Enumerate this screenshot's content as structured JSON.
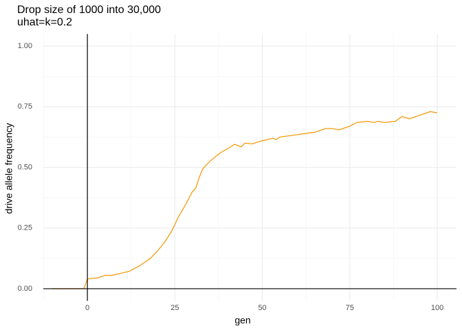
{
  "chart_data": {
    "type": "line",
    "title": "Drop size of 1000 into 30,000",
    "subtitle": "uhat=k=0.2",
    "x_label": "gen",
    "y_label": "drive allele frequency",
    "x": [
      -10,
      -1,
      0,
      3,
      5,
      7,
      10,
      12,
      13,
      15,
      18,
      20,
      22,
      24,
      26,
      28,
      30,
      31,
      32,
      33,
      35,
      38,
      41,
      42,
      44,
      45,
      47,
      50,
      53,
      54,
      55,
      60,
      65,
      68,
      70,
      72,
      75,
      77,
      80,
      82,
      83,
      85,
      88,
      90,
      92,
      95,
      98,
      100
    ],
    "series": [
      {
        "name": "drive",
        "color": "#f39c12",
        "values": [
          0,
          0,
          0.04,
          0.045,
          0.055,
          0.055,
          0.065,
          0.072,
          0.08,
          0.095,
          0.125,
          0.155,
          0.19,
          0.235,
          0.295,
          0.345,
          0.4,
          0.415,
          0.46,
          0.495,
          0.525,
          0.56,
          0.585,
          0.595,
          0.585,
          0.6,
          0.597,
          0.61,
          0.62,
          0.615,
          0.625,
          0.635,
          0.645,
          0.66,
          0.66,
          0.655,
          0.67,
          0.685,
          0.69,
          0.685,
          0.69,
          0.685,
          0.69,
          0.71,
          0.7,
          0.715,
          0.73,
          0.725
        ]
      }
    ],
    "xlim": [
      -12.6,
      105.5
    ],
    "ylim": [
      -0.05,
      1.05
    ],
    "xticks": [
      0,
      25,
      50,
      75,
      100
    ],
    "yticks": [
      {
        "value": 0,
        "label": "0.00"
      },
      {
        "value": 0.25,
        "label": "0.25"
      },
      {
        "value": 0.5,
        "label": "0.50"
      },
      {
        "value": 0.75,
        "label": "0.75"
      },
      {
        "value": 1,
        "label": "1.00"
      }
    ],
    "vline": 0,
    "hline": 0,
    "grid": true
  }
}
